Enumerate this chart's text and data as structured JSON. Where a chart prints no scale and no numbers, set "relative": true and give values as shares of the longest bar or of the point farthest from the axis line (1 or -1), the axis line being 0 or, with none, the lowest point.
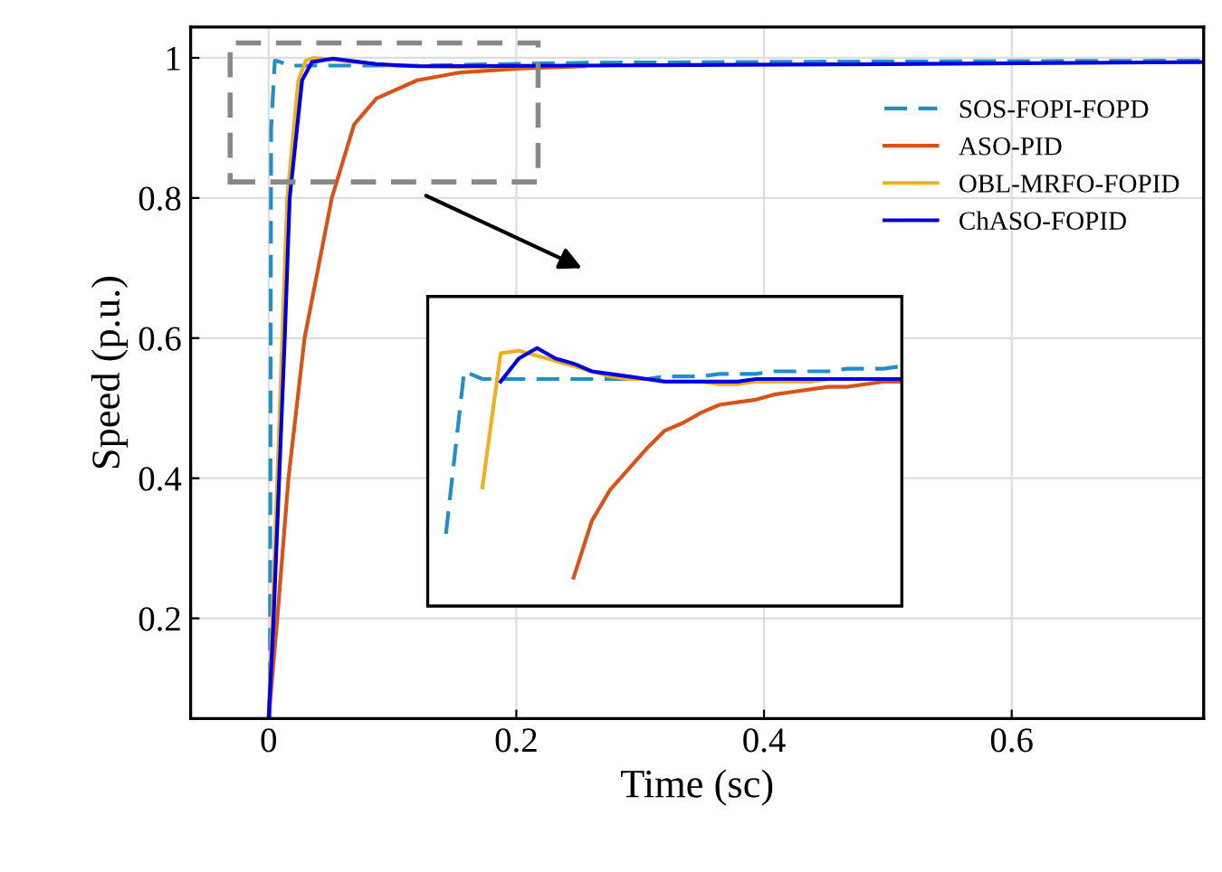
{
  "chart_data": [
    {
      "type": "line",
      "xlabel": "Time (sc)",
      "ylabel": "Speed (p.u.)",
      "xlim": [
        -0.063,
        0.755
      ],
      "ylim": [
        0.057,
        1.044
      ],
      "xticks": [
        0,
        0.2,
        0.4,
        0.6
      ],
      "yticks": [
        0.2,
        0.4,
        0.6,
        0.8,
        1
      ],
      "grid": true,
      "legend": "top right",
      "series": [
        {
          "name": "SOS-FOPI-FOPD",
          "color": "#1f8fc8",
          "line_style": "dashed",
          "x": [
            0.001,
            0.002,
            0.005,
            0.008,
            0.017,
            0.06,
            0.12,
            0.255,
            0.5,
            0.755
          ],
          "values": [
            0.057,
            0.9,
            0.996,
            0.995,
            0.989,
            0.989,
            0.989,
            0.993,
            0.995,
            0.996
          ]
        },
        {
          "name": "ASO-PID",
          "color": "#d95319",
          "x": [
            0.0,
            0.007,
            0.016,
            0.029,
            0.051,
            0.069,
            0.087,
            0.12,
            0.154,
            0.204,
            0.255
          ],
          "values": [
            0.057,
            0.2,
            0.4,
            0.6,
            0.8,
            0.905,
            0.942,
            0.968,
            0.979,
            0.985,
            0.988
          ]
        },
        {
          "name": "OBL-MRFO-FOPID",
          "color": "#edb120",
          "x": [
            0.0,
            0.003,
            0.011,
            0.015,
            0.024,
            0.03,
            0.037,
            0.07,
            0.097,
            0.154,
            0.255
          ],
          "values": [
            0.057,
            0.2,
            0.6,
            0.8,
            0.968,
            0.996,
            1.0,
            0.994,
            0.989,
            0.987,
            0.989
          ]
        },
        {
          "name": "ChASO-FOPID",
          "color": "#0000e0",
          "x": [
            0.0,
            0.004,
            0.013,
            0.017,
            0.027,
            0.035,
            0.052,
            0.087,
            0.12,
            0.255,
            0.5,
            0.755
          ],
          "values": [
            0.057,
            0.2,
            0.6,
            0.8,
            0.968,
            0.994,
            0.999,
            0.991,
            0.988,
            0.989,
            0.991,
            0.994
          ]
        }
      ]
    },
    {
      "type": "line",
      "relative": true,
      "tick_labels": false,
      "categories": [
        null,
        null,
        null,
        null,
        null,
        null,
        null,
        null,
        null,
        null,
        null,
        null,
        null,
        null,
        null,
        null,
        null,
        null,
        null,
        null,
        null,
        null,
        null,
        null,
        null,
        null,
        null
      ],
      "series": [
        {
          "color": "#1f8fc8",
          "line_style": "dashed",
          "values": [
            null,
            0.28,
            0.91,
            0.88,
            0.88,
            0.88,
            0.88,
            0.88,
            0.88,
            0.88,
            0.88,
            0.88,
            0.88,
            0.89,
            0.89,
            0.89,
            0.9,
            0.9,
            0.9,
            0.91,
            0.91,
            0.91,
            0.91,
            0.92,
            0.92,
            0.92,
            0.93
          ]
        },
        {
          "color": "#d95319",
          "values": [
            null,
            null,
            null,
            null,
            null,
            null,
            null,
            null,
            0.11,
            0.33,
            0.45,
            0.53,
            0.61,
            0.68,
            0.71,
            0.75,
            0.78,
            0.79,
            0.8,
            0.82,
            0.83,
            0.84,
            0.85,
            0.85,
            0.86,
            0.87,
            0.87
          ]
        },
        {
          "color": "#edb120",
          "values": [
            null,
            null,
            null,
            0.46,
            0.98,
            0.99,
            0.97,
            0.95,
            0.93,
            0.91,
            0.89,
            0.88,
            0.88,
            null,
            null,
            0.87,
            0.86,
            0.86,
            0.87,
            0.87,
            0.87,
            0.87,
            0.88,
            0.88,
            null,
            null,
            null
          ]
        },
        {
          "color": "#0000e0",
          "values": [
            null,
            null,
            null,
            null,
            0.87,
            0.96,
            1.0,
            0.96,
            0.94,
            0.91,
            0.9,
            0.89,
            0.88,
            0.87,
            0.87,
            0.87,
            0.87,
            0.87,
            0.88,
            0.88,
            0.88,
            0.88,
            0.88,
            0.88,
            0.88,
            0.88,
            0.88
          ]
        }
      ]
    }
  ]
}
